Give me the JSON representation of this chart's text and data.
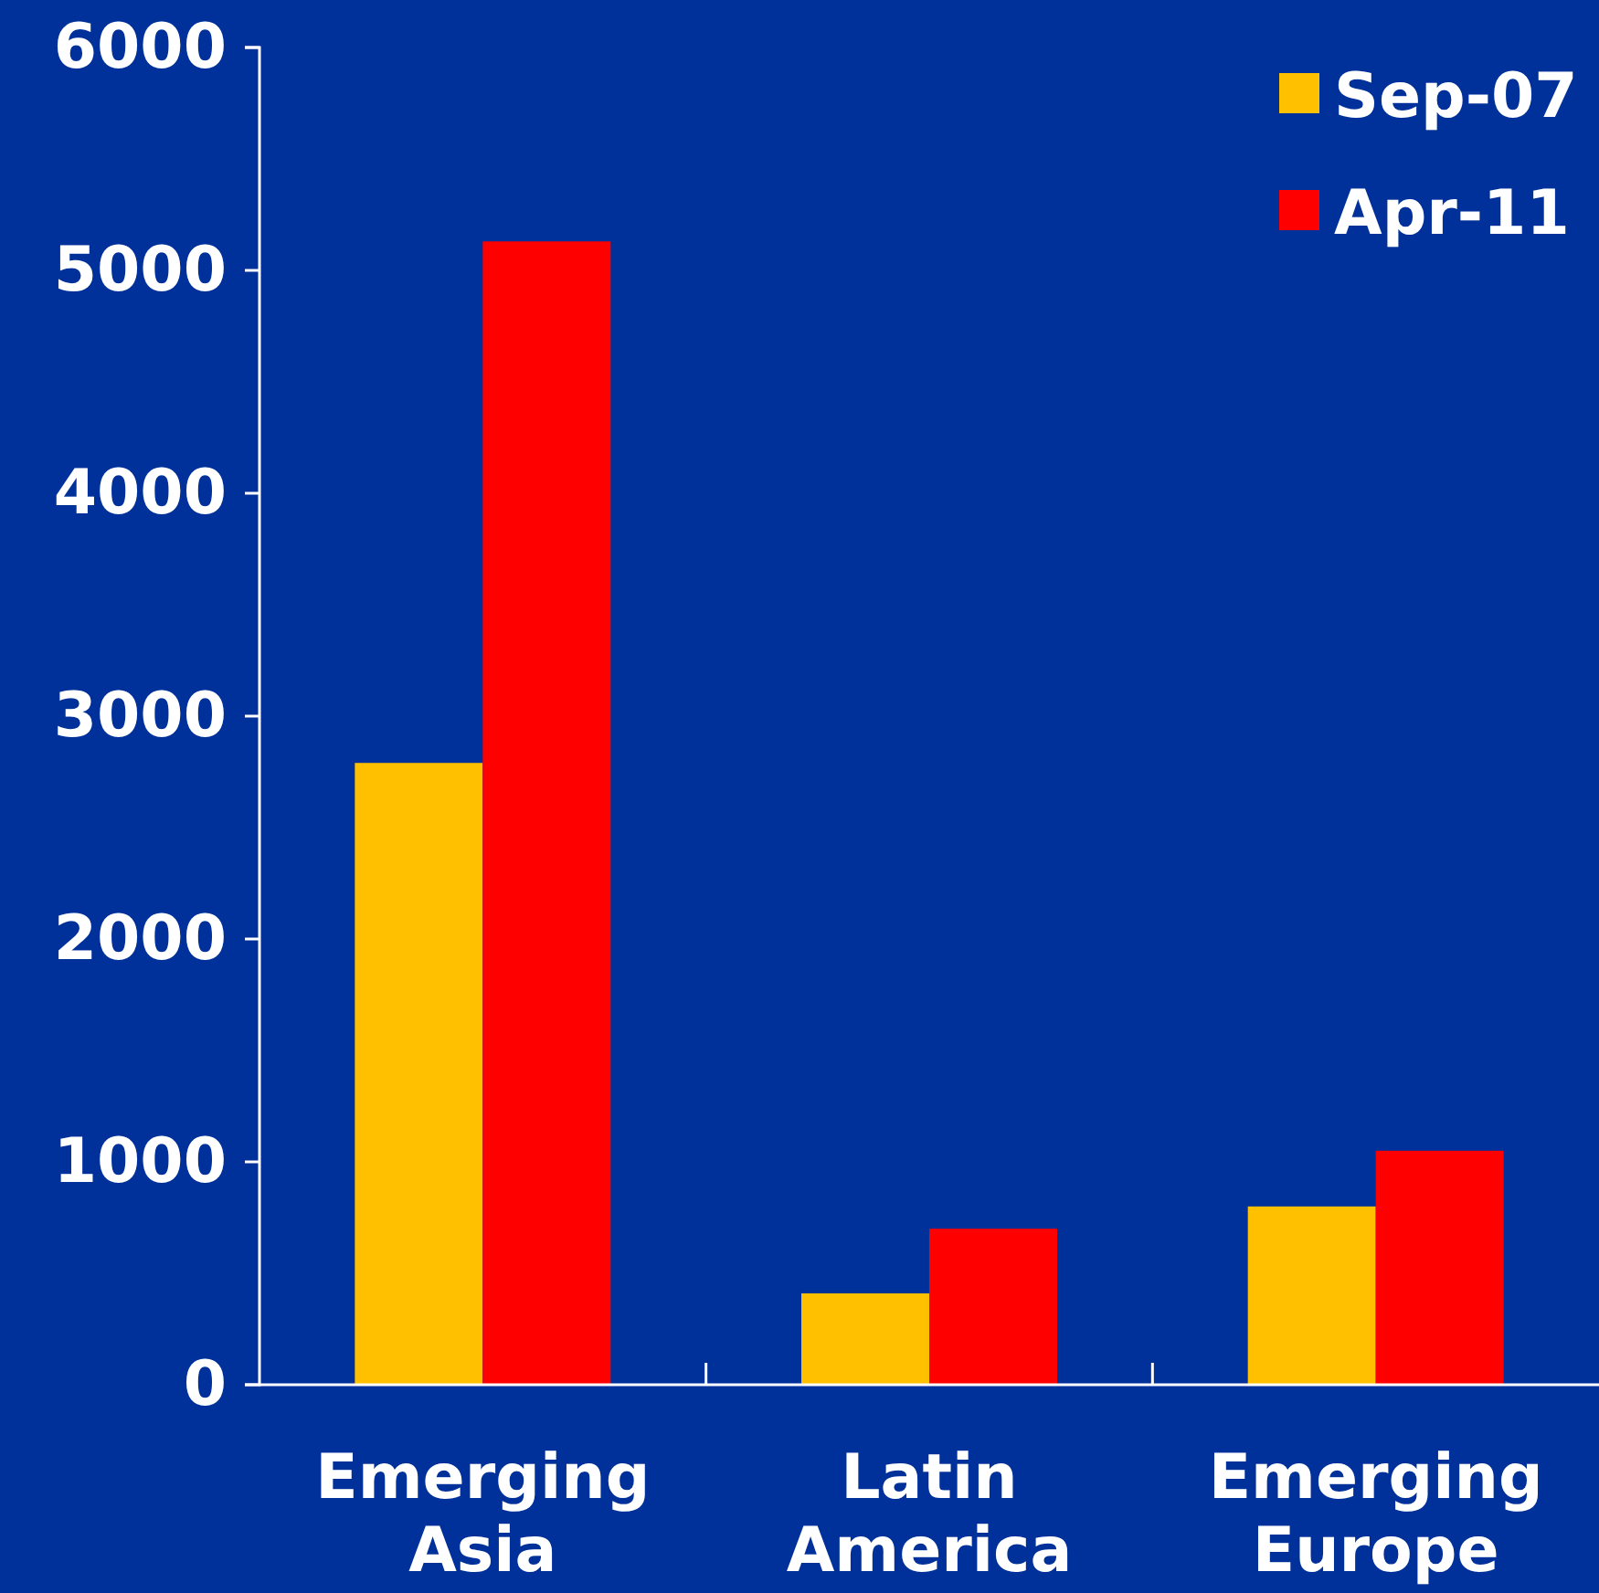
{
  "chart_data": {
    "type": "bar",
    "categories": [
      "Emerging Asia",
      "Latin America",
      "Emerging Europe"
    ],
    "series": [
      {
        "name": "Sep-07",
        "color": "#ffc000",
        "values": [
          2790,
          410,
          800
        ]
      },
      {
        "name": "Apr-11",
        "color": "#ff0000",
        "values": [
          5130,
          700,
          1050
        ]
      }
    ],
    "ylim": [
      0,
      6000
    ],
    "yticks": [
      0,
      1000,
      2000,
      3000,
      4000,
      5000,
      6000
    ],
    "legend": "top right",
    "grid": false
  }
}
